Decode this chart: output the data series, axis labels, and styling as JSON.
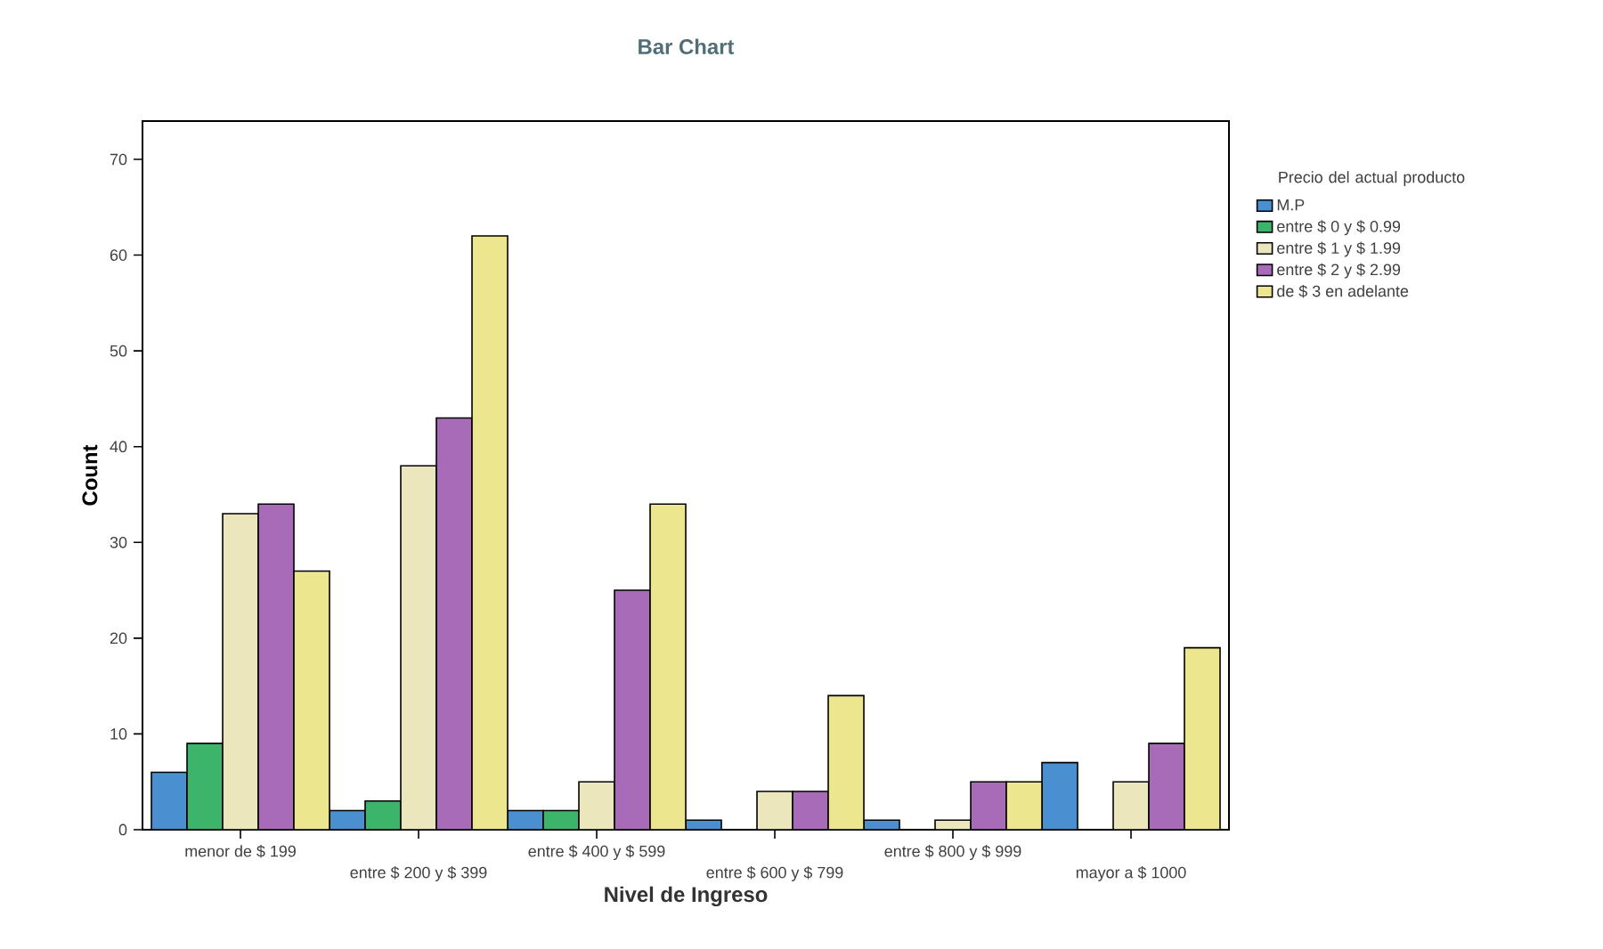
{
  "chart_data": {
    "type": "bar",
    "title": "Bar Chart",
    "xlabel": "Nivel de Ingreso",
    "ylabel": "Count",
    "legend_title": "Precio del actual producto",
    "categories": [
      "menor de $ 199",
      "entre $ 200 y $ 399",
      "entre $ 400 y $ 599",
      "entre $ 600 y $ 799",
      "entre $ 800 y $ 999",
      "mayor a $ 1000"
    ],
    "series": [
      {
        "name": "M.P",
        "color": "#4a8fd0",
        "values": [
          6,
          2,
          2,
          1,
          1,
          7
        ]
      },
      {
        "name": "entre $ 0 y $ 0.99",
        "color": "#3cb46a",
        "values": [
          9,
          3,
          2,
          0,
          0,
          0
        ]
      },
      {
        "name": "entre $ 1 y $ 1.99",
        "color": "#ebe6bc",
        "values": [
          33,
          38,
          5,
          4,
          1,
          5
        ]
      },
      {
        "name": "entre $ 2 y $ 2.99",
        "color": "#a76bb8",
        "values": [
          34,
          43,
          25,
          4,
          5,
          9
        ]
      },
      {
        "name": "de $ 3 en adelante",
        "color": "#ece68e",
        "values": [
          27,
          62,
          34,
          14,
          5,
          19
        ]
      }
    ],
    "ylim": [
      0,
      74
    ],
    "yticks": [
      0,
      10,
      20,
      30,
      40,
      50,
      60,
      70
    ],
    "grid": false,
    "legend": "right"
  }
}
